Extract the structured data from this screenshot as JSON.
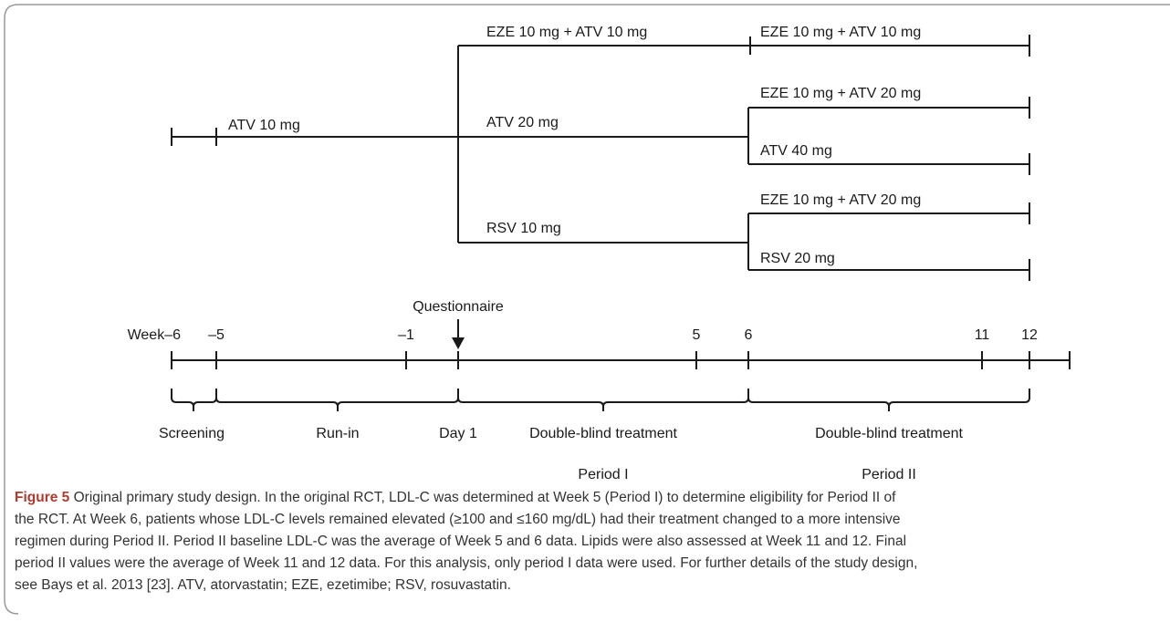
{
  "diagram": {
    "run_in": "ATV 10 mg",
    "period1_arms": [
      "EZE 10 mg + ATV 10 mg",
      "ATV 20 mg",
      "RSV 10 mg"
    ],
    "period2_arms": [
      "EZE 10 mg + ATV 10 mg",
      "EZE 10 mg + ATV 20 mg",
      "ATV 40 mg",
      "EZE 10 mg + ATV 20 mg",
      "RSV 20 mg"
    ],
    "timeline": {
      "week_labels": [
        "Week–6",
        "–5",
        "–1",
        "5",
        "6",
        "11",
        "12"
      ],
      "marker": "Questionnaire",
      "phases": [
        "Screening",
        "Run-in",
        "Day 1",
        "Double-blind treatment",
        "Double-blind treatment"
      ],
      "periods": [
        "Period I",
        "Period II"
      ]
    }
  },
  "caption": {
    "label": "Figure 5",
    "lines": [
      " Original primary study design. In the original RCT, LDL-C was determined at Week 5 (Period I) to determine eligibility for Period II of",
      "the RCT. At Week 6, patients whose LDL-C levels remained elevated (≥100 and ≤160 mg/dL) had their treatment changed to a more intensive",
      "regimen during Period II. Period II baseline LDL-C was the average of Week 5 and 6 data. Lipids were also assessed at Week 11 and 12. Final",
      "period II values were the average of Week 11 and 12 data. For this analysis, only period I data were used. For further details of the study design,",
      "see Bays et al. 2013 [23]. ATV, atorvastatin; EZE, ezetimibe; RSV, rosuvastatin."
    ]
  }
}
